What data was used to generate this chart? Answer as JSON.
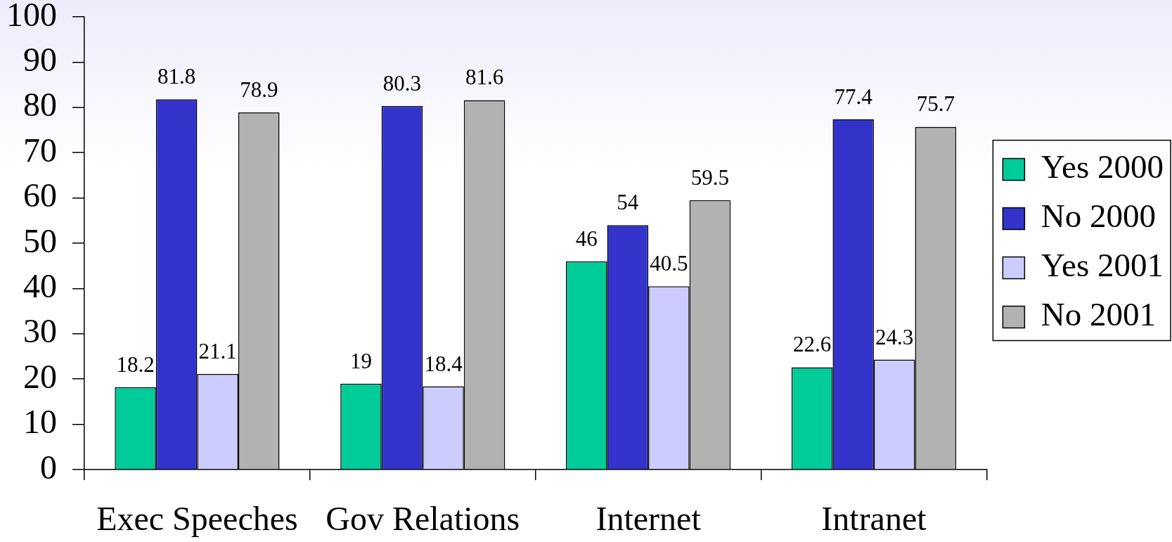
{
  "chart_data": {
    "type": "bar",
    "categories": [
      "Exec Speeches",
      "Gov Relations",
      "Internet",
      "Intranet"
    ],
    "series": [
      {
        "name": "Yes 2000",
        "color": "#00cc99",
        "values": [
          18.2,
          19,
          46,
          22.6
        ]
      },
      {
        "name": "No 2000",
        "color": "#3333cc",
        "values": [
          81.8,
          80.3,
          54,
          77.4
        ]
      },
      {
        "name": "Yes 2001",
        "color": "#ccccff",
        "values": [
          21.1,
          18.4,
          40.5,
          24.3
        ]
      },
      {
        "name": "No 2001",
        "color": "#b2b2b2",
        "values": [
          78.9,
          81.6,
          59.5,
          75.7
        ]
      }
    ],
    "ylim": [
      0,
      100
    ],
    "yticks": [
      0,
      10,
      20,
      30,
      40,
      50,
      60,
      70,
      80,
      90,
      100
    ],
    "legend": "right",
    "data_labels": true
  }
}
